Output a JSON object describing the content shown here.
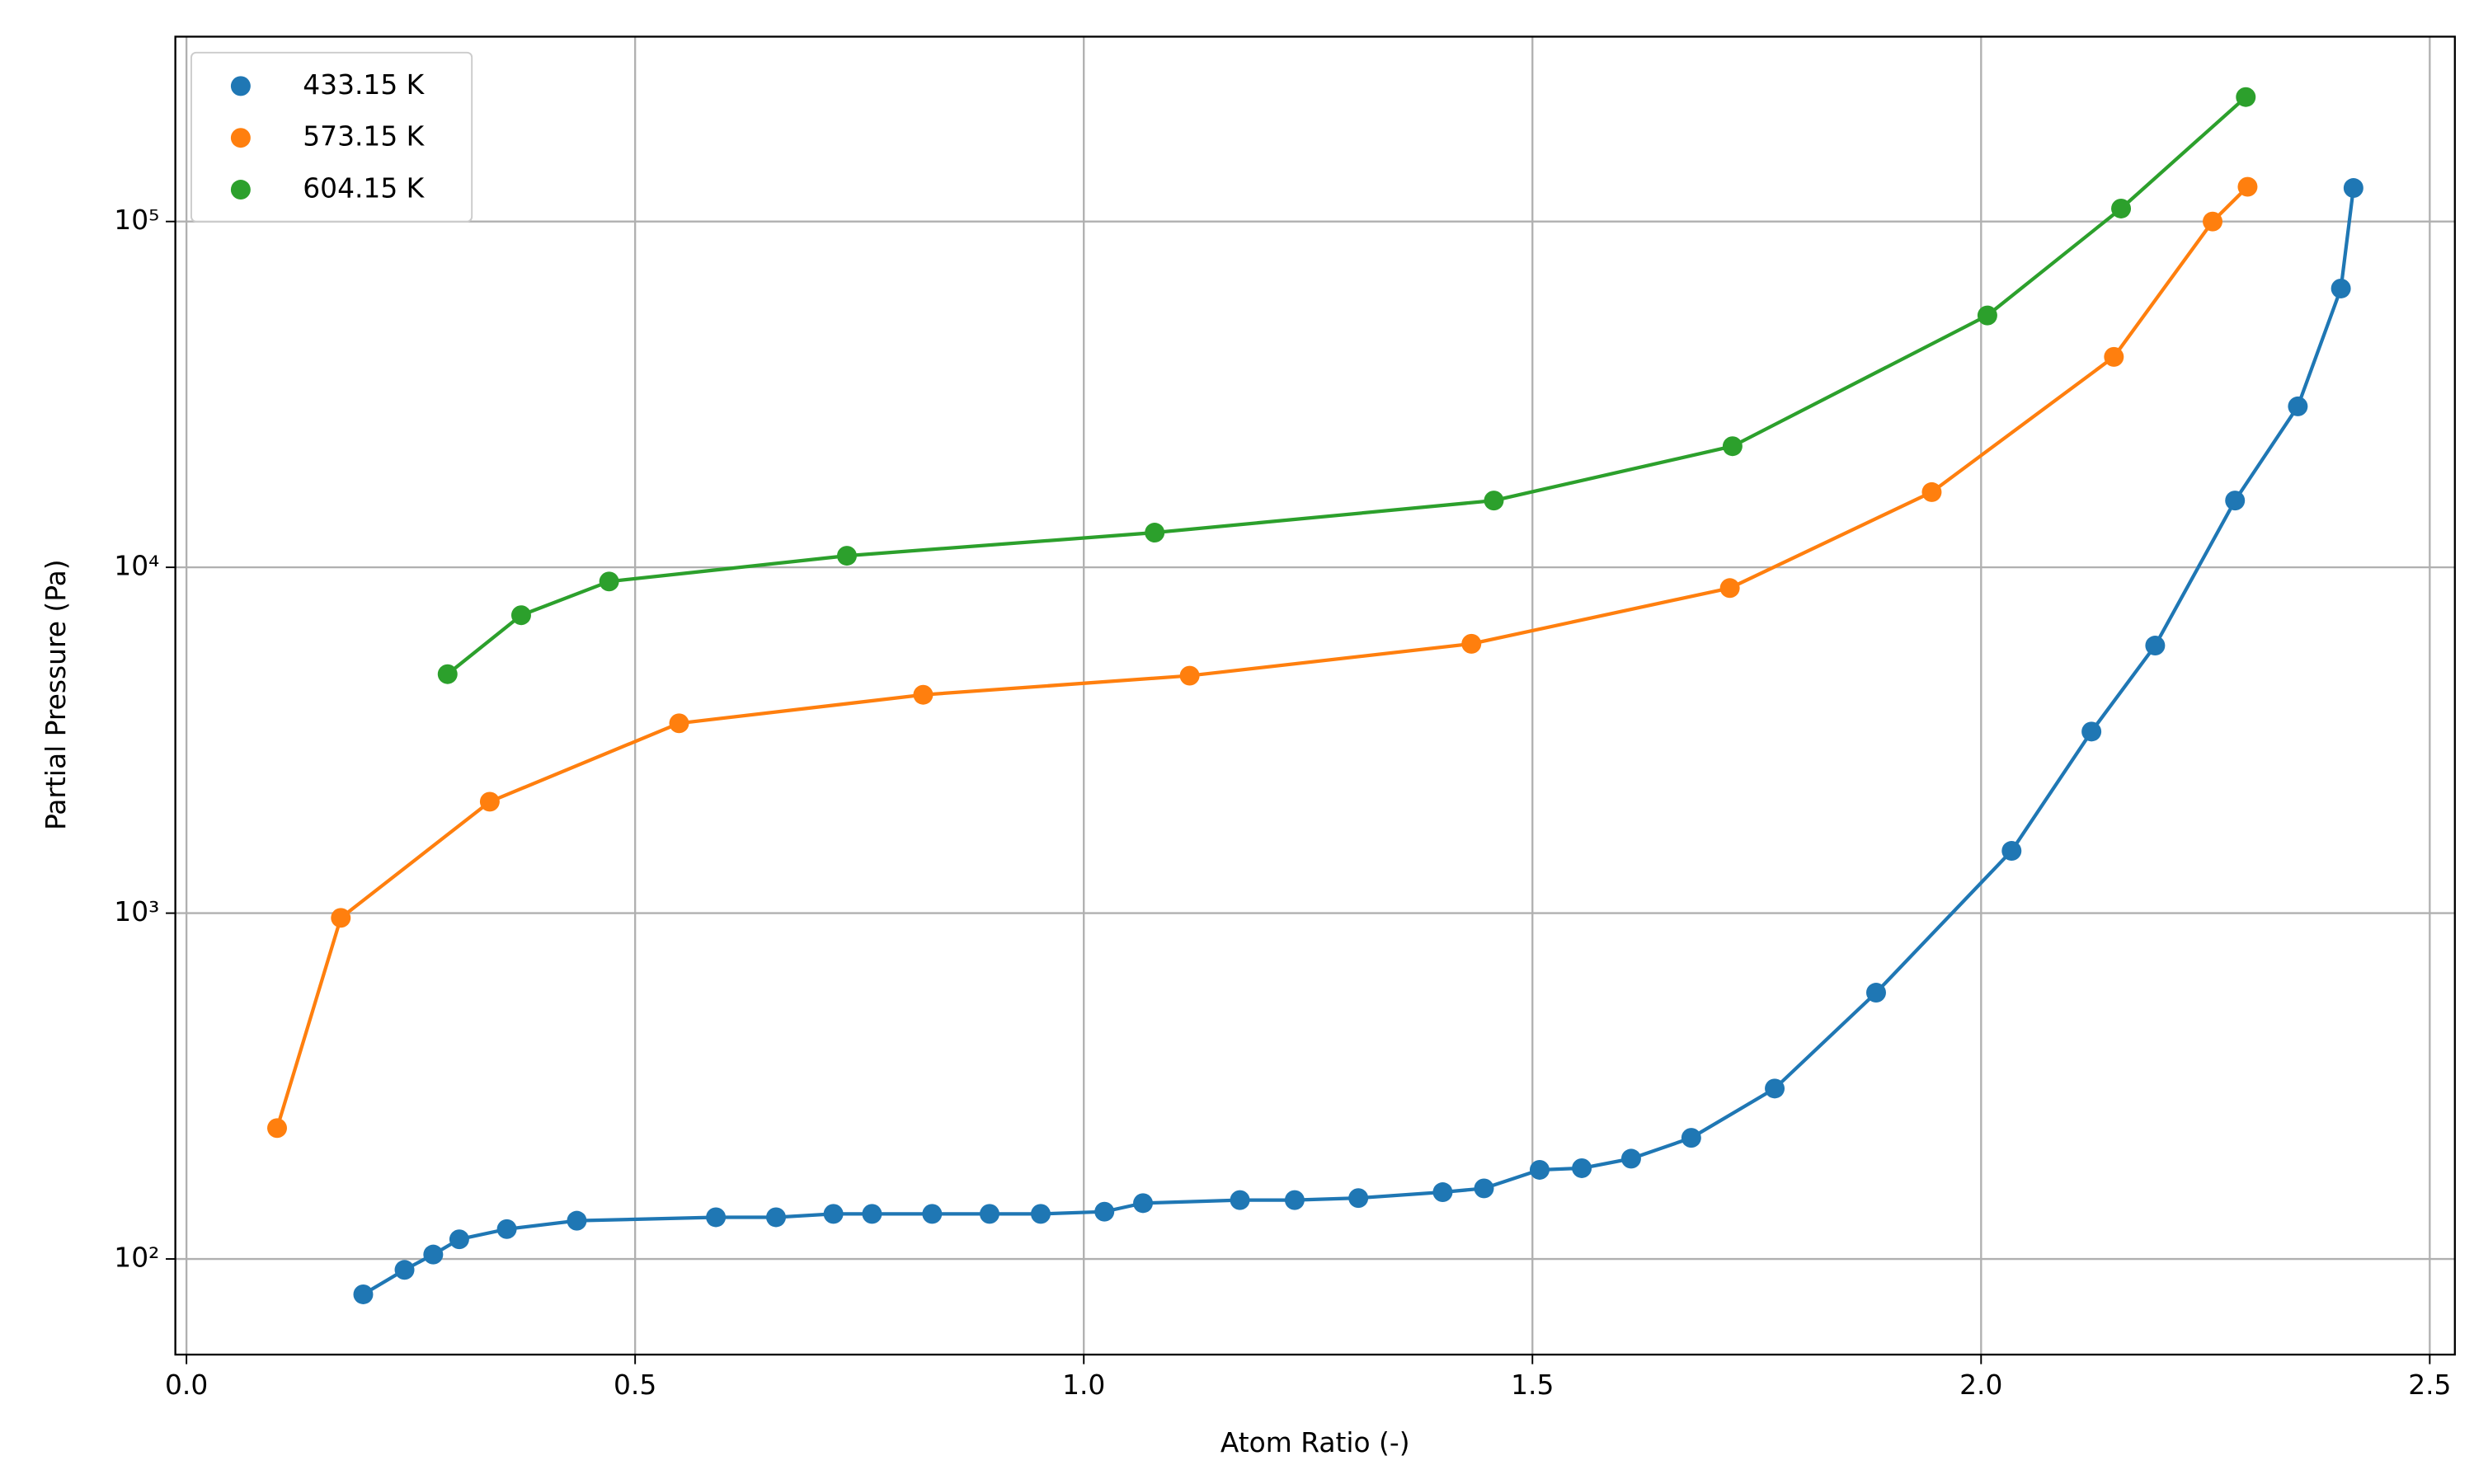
{
  "chart_data": {
    "type": "line",
    "x_label": "Atom Ratio (-)",
    "y_label": "Partial Pressure (Pa)",
    "yscale": "log",
    "grid": true,
    "legend": "upper left",
    "xlim": [
      -0.0124,
      2.528
    ],
    "ylim": [
      52.9,
      342400
    ],
    "xticks": [
      {
        "value": 0,
        "label": "0.0"
      },
      0.5,
      {
        "value": 1,
        "label": "1.0"
      },
      1.5,
      {
        "value": 2,
        "label": "2.0"
      },
      2.5
    ],
    "yticks": [
      {
        "value": 100,
        "label": "10²"
      },
      {
        "value": 1000,
        "label": "10³"
      },
      {
        "value": 10000,
        "label": "10⁴"
      },
      {
        "value": 100000,
        "label": "10⁵"
      }
    ],
    "series": [
      {
        "name": "433.15 K",
        "color": "#1f77b4",
        "x": [
          0.197,
          0.243,
          0.275,
          0.304,
          0.357,
          0.435,
          0.59,
          0.657,
          0.721,
          0.764,
          0.831,
          0.895,
          0.952,
          1.023,
          1.066,
          1.174,
          1.235,
          1.306,
          1.4,
          1.446,
          1.508,
          1.555,
          1.61,
          1.677,
          1.77,
          1.883,
          2.034,
          2.123,
          2.194,
          2.283,
          2.353,
          2.401,
          2.415
        ],
        "values": [
          79,
          93,
          103,
          114,
          122,
          129,
          132,
          132,
          135,
          135,
          135,
          135,
          135,
          137,
          145,
          148,
          148,
          150,
          156,
          160,
          181,
          183,
          195,
          224,
          311,
          589,
          1514,
          3350,
          5940,
          15600,
          29200,
          64000,
          125000
        ]
      },
      {
        "name": "573.15 K",
        "color": "#ff7f0e",
        "x": [
          0.101,
          0.172,
          0.338,
          0.549,
          0.821,
          1.118,
          1.432,
          1.72,
          1.945,
          2.148,
          2.258,
          2.297
        ],
        "values": [
          239,
          969,
          2100,
          3540,
          4280,
          4860,
          6010,
          8710,
          16500,
          40600,
          100000,
          126000
        ]
      },
      {
        "name": "604.15 K",
        "color": "#2ca02c",
        "x": [
          0.291,
          0.373,
          0.471,
          0.736,
          1.079,
          1.457,
          1.723,
          2.007,
          2.156,
          2.295
        ],
        "values": [
          4910,
          7270,
          9100,
          10800,
          12600,
          15600,
          22400,
          53500,
          109000,
          229000
        ]
      }
    ]
  }
}
